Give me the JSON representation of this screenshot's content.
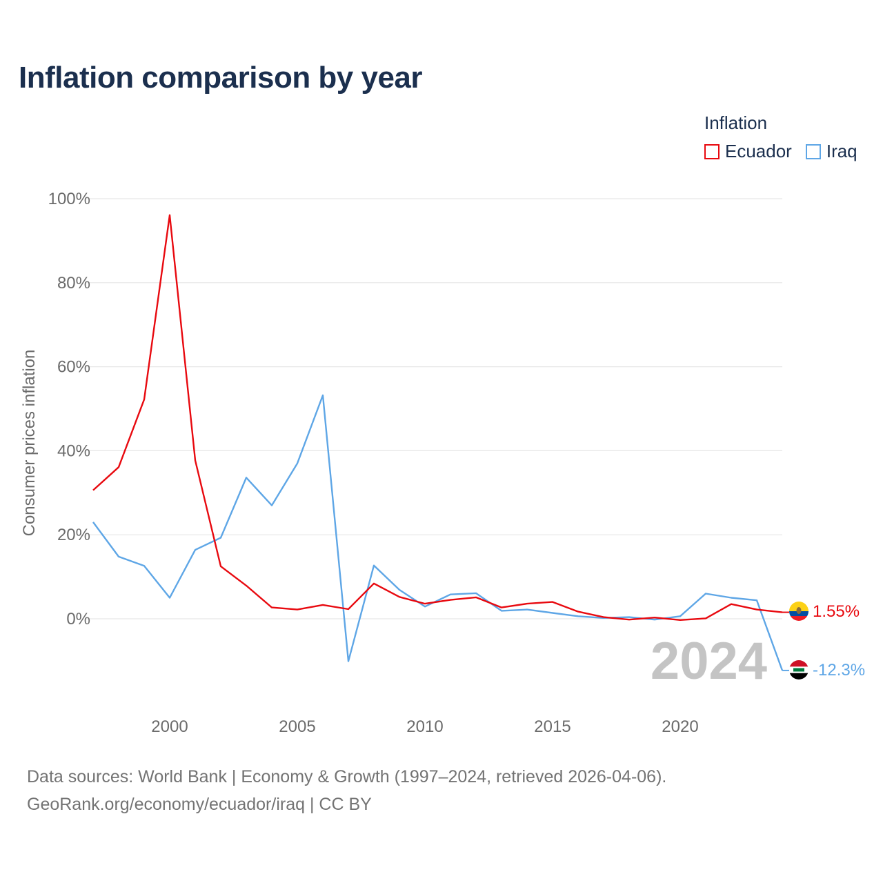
{
  "title": "Inflation comparison by year",
  "legend": {
    "title": "Inflation",
    "items": [
      {
        "name": "Ecuador",
        "color": "#e8090f"
      },
      {
        "name": "Iraq",
        "color": "#5ea6e6"
      }
    ]
  },
  "year_watermark": "2024",
  "end_labels": {
    "ecuador": "1.55%",
    "iraq": "-12.3%"
  },
  "footer": {
    "line1": "Data sources: World Bank | Economy & Growth (1997–2024, retrieved 2026-04-06).",
    "line2": "GeoRank.org/economy/ecuador/iraq | CC BY"
  },
  "chart_data": {
    "type": "line",
    "ylabel": "Consumer prices inflation",
    "xlabel": "",
    "x": [
      1997,
      1998,
      1999,
      2000,
      2001,
      2002,
      2003,
      2004,
      2005,
      2006,
      2007,
      2008,
      2009,
      2010,
      2011,
      2012,
      2013,
      2014,
      2015,
      2016,
      2017,
      2018,
      2019,
      2020,
      2021,
      2022,
      2023,
      2024
    ],
    "xticks": [
      2000,
      2005,
      2010,
      2015,
      2020
    ],
    "xtick_labels": [
      "2000",
      "2005",
      "2010",
      "2015",
      "2020"
    ],
    "xlim": [
      1997,
      2024
    ],
    "yticks": [
      0,
      20,
      40,
      60,
      80,
      100
    ],
    "ytick_labels": [
      "0%",
      "20%",
      "40%",
      "60%",
      "80%",
      "100%"
    ],
    "ylim": [
      -12.3,
      100
    ],
    "grid": true,
    "series": [
      {
        "name": "Ecuador",
        "color": "#e8090f",
        "values": [
          30.6,
          36.1,
          52.2,
          96.1,
          37.7,
          12.5,
          7.9,
          2.7,
          2.2,
          3.3,
          2.3,
          8.4,
          5.2,
          3.6,
          4.5,
          5.1,
          2.7,
          3.6,
          4.0,
          1.7,
          0.4,
          -0.2,
          0.3,
          -0.3,
          0.1,
          3.5,
          2.2,
          1.55
        ]
      },
      {
        "name": "Iraq",
        "color": "#5ea6e6",
        "values": [
          23.0,
          14.8,
          12.6,
          5.0,
          16.4,
          19.3,
          33.6,
          27.0,
          37.0,
          53.2,
          -10.1,
          12.7,
          6.9,
          2.9,
          5.8,
          6.1,
          1.9,
          2.2,
          1.4,
          0.6,
          0.2,
          0.4,
          -0.2,
          0.6,
          6.0,
          5.0,
          4.4,
          -12.3
        ]
      }
    ]
  }
}
